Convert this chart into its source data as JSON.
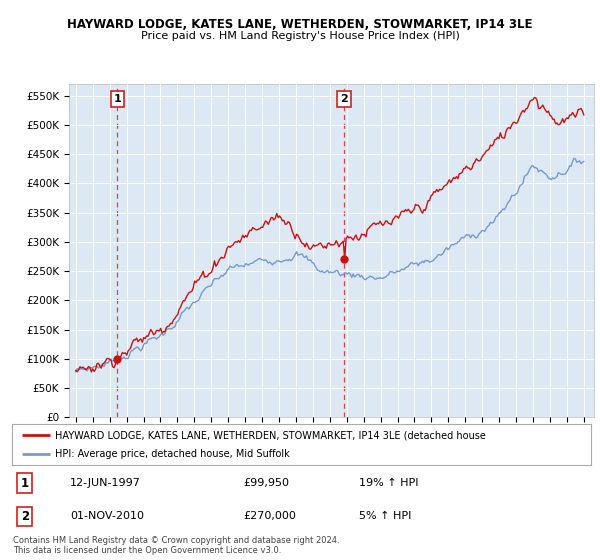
{
  "title1": "HAYWARD LODGE, KATES LANE, WETHERDEN, STOWMARKET, IP14 3LE",
  "title2": "Price paid vs. HM Land Registry's House Price Index (HPI)",
  "ylim": [
    0,
    570000
  ],
  "yticks": [
    0,
    50000,
    100000,
    150000,
    200000,
    250000,
    300000,
    350000,
    400000,
    450000,
    500000,
    550000
  ],
  "ytick_labels": [
    "£0",
    "£50K",
    "£100K",
    "£150K",
    "£200K",
    "£250K",
    "£300K",
    "£350K",
    "£400K",
    "£450K",
    "£500K",
    "£550K"
  ],
  "hpi_color": "#7799cc",
  "price_color": "#cc1111",
  "plot_bg_color": "#dde8f5",
  "grid_color": "#ffffff",
  "legend_label_red": "HAYWARD LODGE, KATES LANE, WETHERDEN, STOWMARKET, IP14 3LE (detached house",
  "legend_label_blue": "HPI: Average price, detached house, Mid Suffolk",
  "sale1_date_label": "12-JUN-1997",
  "sale1_price_label": "£99,950",
  "sale1_hpi_label": "19% ↑ HPI",
  "sale2_date_label": "01-NOV-2010",
  "sale2_price_label": "£270,000",
  "sale2_hpi_label": "5% ↑ HPI",
  "copyright_text": "Contains HM Land Registry data © Crown copyright and database right 2024.\nThis data is licensed under the Open Government Licence v3.0.",
  "sale1_year": 1997.45,
  "sale2_year": 2010.84,
  "sale1_price": 99950,
  "sale2_price": 270000,
  "vline_color": "#cc1111",
  "marker_color": "#cc1111",
  "box_edge_color": "#cc2222"
}
